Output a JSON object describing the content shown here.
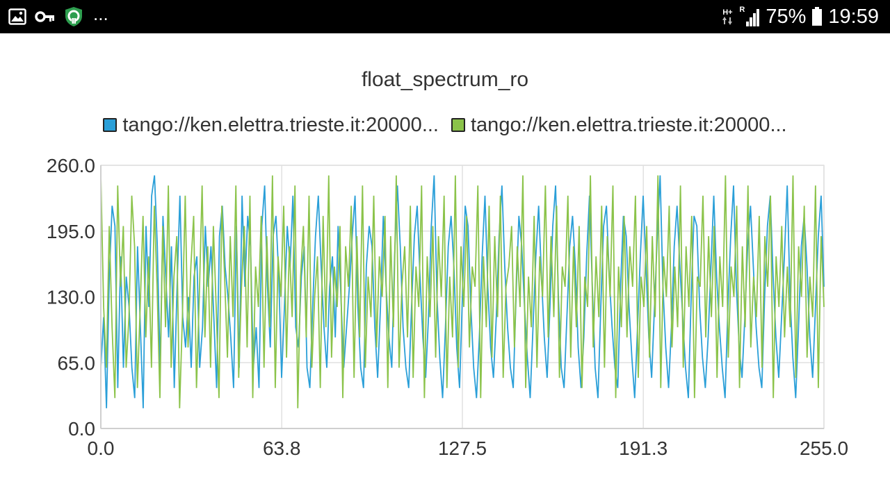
{
  "status_bar": {
    "overflow_indicator": "...",
    "network_type": "H+",
    "roaming": "R",
    "battery_percent": "75%",
    "time": "19:59",
    "icons": [
      "gallery-icon",
      "key-icon",
      "vpn-shield-icon",
      "network-type-icon",
      "signal-icon",
      "battery-icon"
    ]
  },
  "chart_data": {
    "type": "line",
    "title": "float_spectrum_ro",
    "xlabel": "",
    "ylabel": "",
    "xlim": [
      0,
      255
    ],
    "ylim": [
      0,
      260
    ],
    "x_ticks": [
      "0.0",
      "63.8",
      "127.5",
      "191.3",
      "255.0"
    ],
    "y_ticks": [
      "0.0",
      "65.0",
      "130.0",
      "195.0",
      "260.0"
    ],
    "grid": true,
    "legend_position": "top-center",
    "series": [
      {
        "name": "tango://ken.elettra.trieste.it:20000...",
        "color": "#2a9fd8",
        "values": [
          60,
          110,
          20,
          150,
          220,
          200,
          40,
          170,
          60,
          150,
          120,
          60,
          30,
          180,
          100,
          20,
          200,
          120,
          230,
          250,
          180,
          60,
          210,
          150,
          90,
          180,
          40,
          140,
          230,
          110,
          80,
          130,
          60,
          150,
          170,
          60,
          100,
          200,
          140,
          180,
          110,
          40,
          190,
          220,
          160,
          130,
          90,
          40,
          200,
          60,
          230,
          140,
          210,
          180,
          60,
          100,
          40,
          200,
          240,
          140,
          80,
          190,
          210,
          150,
          50,
          120,
          200,
          160,
          230,
          100,
          80,
          150,
          180,
          60,
          40,
          120,
          190,
          230,
          160,
          100,
          60,
          140,
          170,
          90,
          200,
          130,
          60,
          100,
          140,
          190,
          230,
          120,
          60,
          40,
          160,
          200,
          180,
          100,
          50,
          120,
          210,
          140,
          90,
          60,
          170,
          240,
          180,
          100,
          60,
          40,
          120,
          190,
          220,
          150,
          90,
          50,
          110,
          200,
          250,
          130,
          70,
          30,
          100,
          180,
          210,
          160,
          80,
          40,
          130,
          220,
          200,
          120,
          60,
          30,
          90,
          170,
          230,
          140,
          80,
          50,
          110,
          190,
          240,
          160,
          100,
          60,
          40,
          130,
          210,
          180,
          120,
          70,
          30,
          100,
          170,
          220,
          150,
          90,
          50,
          120,
          200,
          240,
          130,
          60,
          40,
          110,
          180,
          210,
          160,
          80,
          40,
          90,
          170,
          230,
          140,
          60,
          30,
          120,
          200,
          220,
          150,
          100,
          60,
          40,
          140,
          210,
          190,
          120,
          70,
          30,
          100,
          170,
          230,
          160,
          90,
          50,
          120,
          190,
          250,
          140,
          80,
          40,
          100,
          180,
          220,
          160,
          110,
          60,
          30,
          130,
          210,
          200,
          120,
          70,
          40,
          90,
          160,
          230,
          150,
          100,
          60,
          30,
          120,
          190,
          240,
          140,
          80,
          50,
          110,
          180,
          220,
          160,
          100,
          60,
          40,
          130,
          200,
          230,
          150,
          90,
          50,
          110,
          170,
          240,
          130,
          70,
          30,
          100,
          180,
          210,
          160,
          90,
          50,
          120,
          190,
          230,
          140
        ]
      },
      {
        "name": "tango://ken.elettra.trieste.it:20000...",
        "color": "#8bc34a",
        "values": [
          250,
          120,
          60,
          200,
          100,
          30,
          240,
          140,
          200,
          60,
          110,
          230,
          180,
          40,
          120,
          210,
          90,
          170,
          60,
          220,
          140,
          30,
          200,
          100,
          240,
          60,
          150,
          190,
          20,
          110,
          230,
          80,
          160,
          210,
          40,
          130,
          240,
          90,
          180,
          60,
          200,
          120,
          30,
          220,
          150,
          70,
          190,
          110,
          240,
          50,
          140,
          200,
          80,
          230,
          30,
          160,
          120,
          210,
          60,
          190,
          100,
          250,
          40,
          170,
          130,
          220,
          70,
          180,
          110,
          240,
          20,
          150,
          200,
          90,
          230,
          60,
          130,
          170,
          40,
          210,
          100,
          250,
          70,
          160,
          120,
          200,
          30,
          180,
          140,
          220,
          50,
          190,
          90,
          240,
          60,
          150,
          110,
          230,
          80,
          170,
          130,
          210,
          40,
          190,
          100,
          250,
          60,
          140,
          180,
          90,
          220,
          50,
          160,
          120,
          240,
          30,
          170,
          110,
          200,
          70,
          190,
          130,
          230,
          40,
          150,
          90,
          250,
          60,
          180,
          120,
          210,
          80,
          160,
          140,
          240,
          30,
          170,
          100,
          220,
          70,
          190,
          110,
          230,
          50,
          140,
          160,
          200,
          80,
          180,
          120,
          250,
          40,
          150,
          100,
          210,
          60,
          170,
          130,
          240,
          90,
          190,
          110,
          220,
          50,
          160,
          140,
          230,
          70,
          180,
          100,
          200,
          40,
          150,
          120,
          250,
          80,
          170,
          110,
          220,
          60,
          190,
          130,
          240,
          30,
          160,
          100,
          210,
          90,
          180,
          140,
          230,
          50,
          150,
          120,
          200,
          70,
          190,
          110,
          250,
          40,
          170,
          130,
          220,
          80,
          160,
          100,
          240,
          60,
          180,
          120,
          210,
          30,
          150,
          140,
          230,
          90,
          190,
          110,
          200,
          50,
          170,
          120,
          250,
          70,
          160,
          130,
          220,
          40,
          180,
          100,
          240,
          80,
          150,
          110,
          210,
          60,
          190,
          140,
          230,
          30,
          170,
          120,
          200,
          90,
          160,
          100,
          250,
          50,
          180,
          130,
          220,
          70,
          150,
          110,
          240,
          40,
          190,
          120
        ]
      }
    ]
  }
}
